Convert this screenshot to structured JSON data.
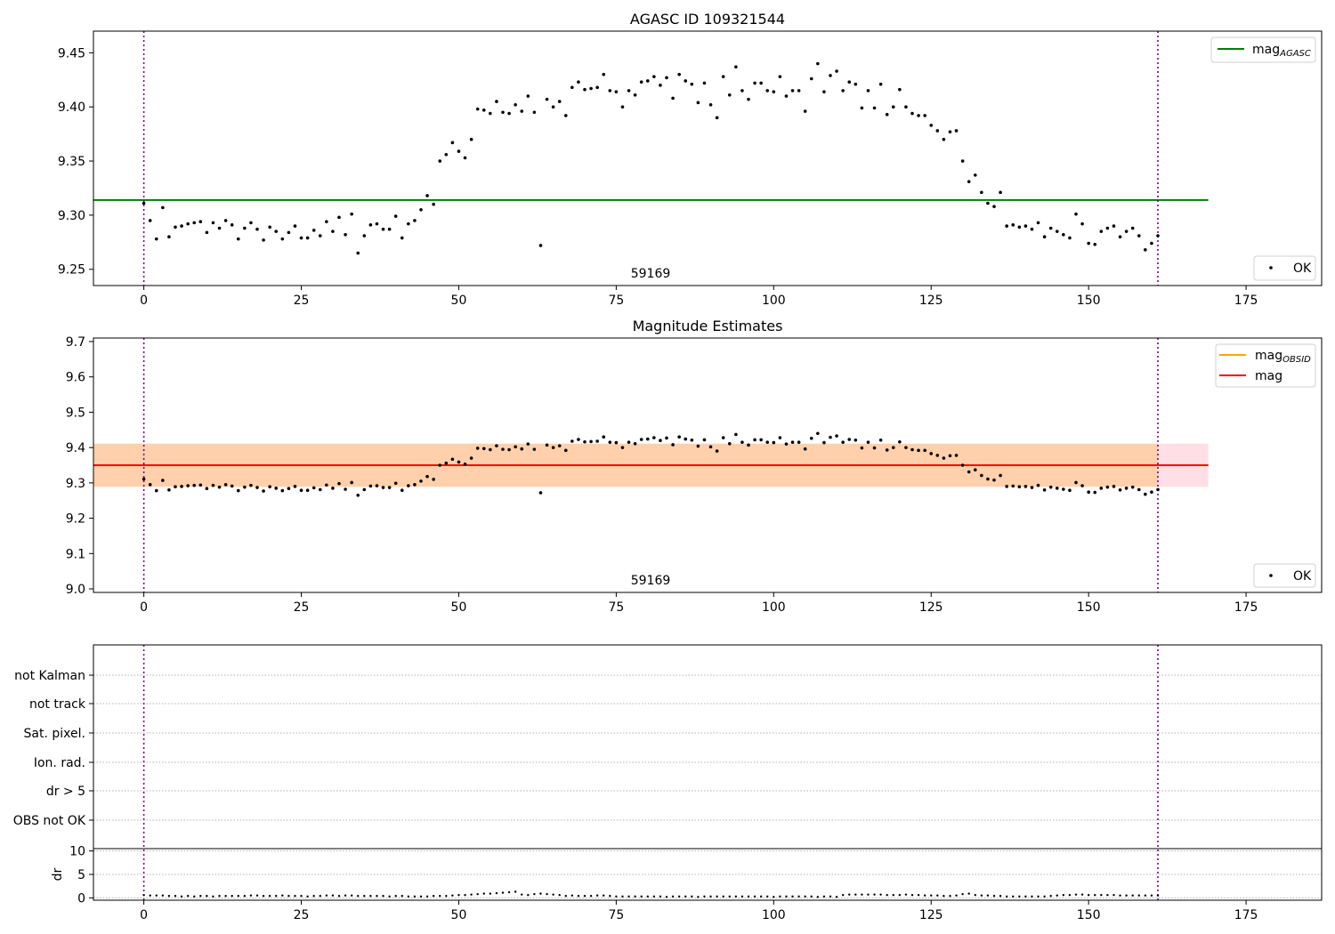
{
  "chart_data": [
    {
      "type": "scatter",
      "title": "AGASC ID 109321544",
      "xlim": [
        -8,
        187
      ],
      "ylim": [
        9.235,
        9.47
      ],
      "xticks": [
        "0",
        "25",
        "50",
        "75",
        "100",
        "125",
        "150",
        "175"
      ],
      "yticks": [
        "9.25",
        "9.30",
        "9.35",
        "9.40",
        "9.45"
      ],
      "obsid_label": "59169",
      "vlines_x": [
        0,
        161
      ],
      "hline": {
        "name": "mag",
        "subscript": "AGASC",
        "value": 9.314,
        "x_range": [
          -8,
          169
        ],
        "color": "#008000"
      },
      "legend_points": "OK",
      "series": [
        {
          "name": "OK",
          "x": [
            0,
            1,
            2,
            3,
            4,
            5,
            6,
            7,
            8,
            9,
            10,
            11,
            12,
            13,
            14,
            15,
            16,
            17,
            18,
            19,
            20,
            21,
            22,
            23,
            24,
            25,
            26,
            27,
            28,
            29,
            30,
            31,
            32,
            33,
            34,
            35,
            36,
            37,
            38,
            39,
            40,
            41,
            42,
            43,
            44,
            45,
            46,
            47,
            48,
            49,
            50,
            51,
            52,
            53,
            54,
            55,
            56,
            57,
            58,
            59,
            60,
            61,
            62,
            63,
            64,
            65,
            66,
            67,
            68,
            69,
            70,
            71,
            72,
            73,
            74,
            75,
            76,
            77,
            78,
            79,
            80,
            81,
            82,
            83,
            84,
            85,
            86,
            87,
            88,
            89,
            90,
            91,
            92,
            93,
            94,
            95,
            96,
            97,
            98,
            99,
            100,
            101,
            102,
            103,
            104,
            105,
            106,
            107,
            108,
            109,
            110,
            111,
            112,
            113,
            114,
            115,
            116,
            117,
            118,
            119,
            120,
            121,
            122,
            123,
            124,
            125,
            126,
            127,
            128,
            129,
            130,
            131,
            132,
            133,
            134,
            135,
            136,
            137,
            138,
            139,
            140,
            141,
            142,
            143,
            144,
            145,
            146,
            147,
            148,
            149,
            150,
            151,
            152,
            153,
            154,
            155,
            156,
            157,
            158,
            159,
            160,
            161
          ],
          "y": [
            9.311,
            9.295,
            9.278,
            9.307,
            9.28,
            9.289,
            9.29,
            9.292,
            9.293,
            9.294,
            9.284,
            9.293,
            9.288,
            9.295,
            9.291,
            9.278,
            9.288,
            9.293,
            9.287,
            9.277,
            9.289,
            9.285,
            9.278,
            9.284,
            9.29,
            9.279,
            9.279,
            9.286,
            9.281,
            9.294,
            9.285,
            9.298,
            9.282,
            9.301,
            9.265,
            9.281,
            9.291,
            9.292,
            9.287,
            9.287,
            9.299,
            9.279,
            9.292,
            9.295,
            9.305,
            9.318,
            9.31,
            9.35,
            9.356,
            9.367,
            9.359,
            9.353,
            9.37,
            9.398,
            9.397,
            9.394,
            9.405,
            9.395,
            9.394,
            9.402,
            9.396,
            9.41,
            9.395,
            9.272,
            9.407,
            9.4,
            9.405,
            9.392,
            9.418,
            9.423,
            9.416,
            9.417,
            9.418,
            9.43,
            9.415,
            9.414,
            9.4,
            9.415,
            9.411,
            9.423,
            9.424,
            9.428,
            9.42,
            9.427,
            9.408,
            9.43,
            9.424,
            9.421,
            9.404,
            9.422,
            9.402,
            9.39,
            9.428,
            9.411,
            9.437,
            9.415,
            9.407,
            9.422,
            9.422,
            9.415,
            9.414,
            9.428,
            9.41,
            9.415,
            9.415,
            9.396,
            9.426,
            9.44,
            9.414,
            9.429,
            9.433,
            9.415,
            9.423,
            9.421,
            9.399,
            9.415,
            9.399,
            9.421,
            9.393,
            9.4,
            9.416,
            9.4,
            9.394,
            9.392,
            9.392,
            9.383,
            9.378,
            9.37,
            9.377,
            9.378,
            9.35,
            9.331,
            9.337,
            9.321,
            9.311,
            9.308,
            9.321,
            9.29,
            9.291,
            9.289,
            9.29,
            9.287,
            9.293,
            9.28,
            9.288,
            9.285,
            9.282,
            9.279,
            9.301,
            9.292,
            9.274,
            9.273,
            9.285,
            9.288,
            9.29,
            9.28,
            9.285,
            9.288,
            9.281,
            9.268,
            9.274,
            9.281
          ]
        }
      ]
    },
    {
      "type": "scatter",
      "title": "Magnitude Estimates",
      "xlim": [
        -8,
        187
      ],
      "ylim": [
        8.99,
        9.71
      ],
      "xticks": [
        "0",
        "25",
        "50",
        "75",
        "100",
        "125",
        "150",
        "175"
      ],
      "yticks": [
        "9.0",
        "9.1",
        "9.2",
        "9.3",
        "9.4",
        "9.5",
        "9.6",
        "9.7"
      ],
      "obsid_label": "59169",
      "vlines_x": [
        0,
        161
      ],
      "band": {
        "y_range": [
          9.289,
          9.411
        ],
        "x_range": [
          -8,
          169
        ]
      },
      "hlines": [
        {
          "name": "mag",
          "subscript": "OBSID",
          "value": 9.35,
          "x_range": [
            -8,
            161
          ],
          "color": "#ffa500"
        },
        {
          "name": "mag",
          "subscript": "",
          "value": 9.35,
          "x_range": [
            -8,
            169
          ],
          "color": "#ff0000"
        }
      ],
      "legend_points": "OK",
      "series_ref": "same as chart 0 series OK"
    },
    {
      "type": "scatter",
      "title": "",
      "xlim": [
        -8,
        187
      ],
      "xticks": [
        "0",
        "25",
        "50",
        "75",
        "100",
        "125",
        "150",
        "175"
      ],
      "vlines_x": [
        0,
        161
      ],
      "flag_labels": [
        "not Kalman",
        "not track",
        "Sat. pixel.",
        "Ion. rad.",
        "dr > 5",
        "OBS not OK"
      ],
      "dr": {
        "ylabel": "dr",
        "ylim": [
          -0.5,
          10.5
        ],
        "yticks": [
          "0",
          "5",
          "10"
        ],
        "y": [
          0.6,
          0.5,
          0.5,
          0.5,
          0.4,
          0.4,
          0.3,
          0.4,
          0.3,
          0.4,
          0.4,
          0.3,
          0.4,
          0.4,
          0.4,
          0.4,
          0.4,
          0.5,
          0.5,
          0.4,
          0.4,
          0.4,
          0.5,
          0.4,
          0.4,
          0.4,
          0.3,
          0.4,
          0.4,
          0.5,
          0.5,
          0.4,
          0.5,
          0.5,
          0.4,
          0.4,
          0.4,
          0.4,
          0.4,
          0.3,
          0.4,
          0.4,
          0.3,
          0.3,
          0.3,
          0.3,
          0.4,
          0.4,
          0.4,
          0.5,
          0.6,
          0.6,
          0.7,
          0.8,
          0.9,
          0.9,
          1.0,
          1.1,
          1.2,
          1.3,
          0.7,
          0.6,
          0.8,
          0.9,
          0.8,
          0.7,
          0.6,
          0.4,
          0.5,
          0.4,
          0.4,
          0.4,
          0.5,
          0.5,
          0.4,
          0.3,
          0.3,
          0.3,
          0.3,
          0.3,
          0.3,
          0.3,
          0.3,
          0.2,
          0.3,
          0.3,
          0.3,
          0.3,
          0.2,
          0.3,
          0.3,
          0.3,
          0.3,
          0.3,
          0.3,
          0.3,
          0.3,
          0.3,
          0.3,
          0.3,
          0.2,
          0.3,
          0.3,
          0.3,
          0.3,
          0.3,
          0.3,
          0.2,
          0.3,
          0.3,
          0.2,
          0.6,
          0.7,
          0.7,
          0.7,
          0.7,
          0.7,
          0.7,
          0.6,
          0.6,
          0.6,
          0.7,
          0.6,
          0.6,
          0.5,
          0.5,
          0.5,
          0.4,
          0.4,
          0.5,
          0.8,
          0.9,
          0.6,
          0.5,
          0.5,
          0.4,
          0.4,
          0.3,
          0.3,
          0.3,
          0.3,
          0.3,
          0.3,
          0.3,
          0.4,
          0.5,
          0.6,
          0.6,
          0.7,
          0.7,
          0.6,
          0.6,
          0.6,
          0.6,
          0.6,
          0.5,
          0.5,
          0.5,
          0.5,
          0.5,
          0.5,
          0.5
        ]
      }
    }
  ]
}
